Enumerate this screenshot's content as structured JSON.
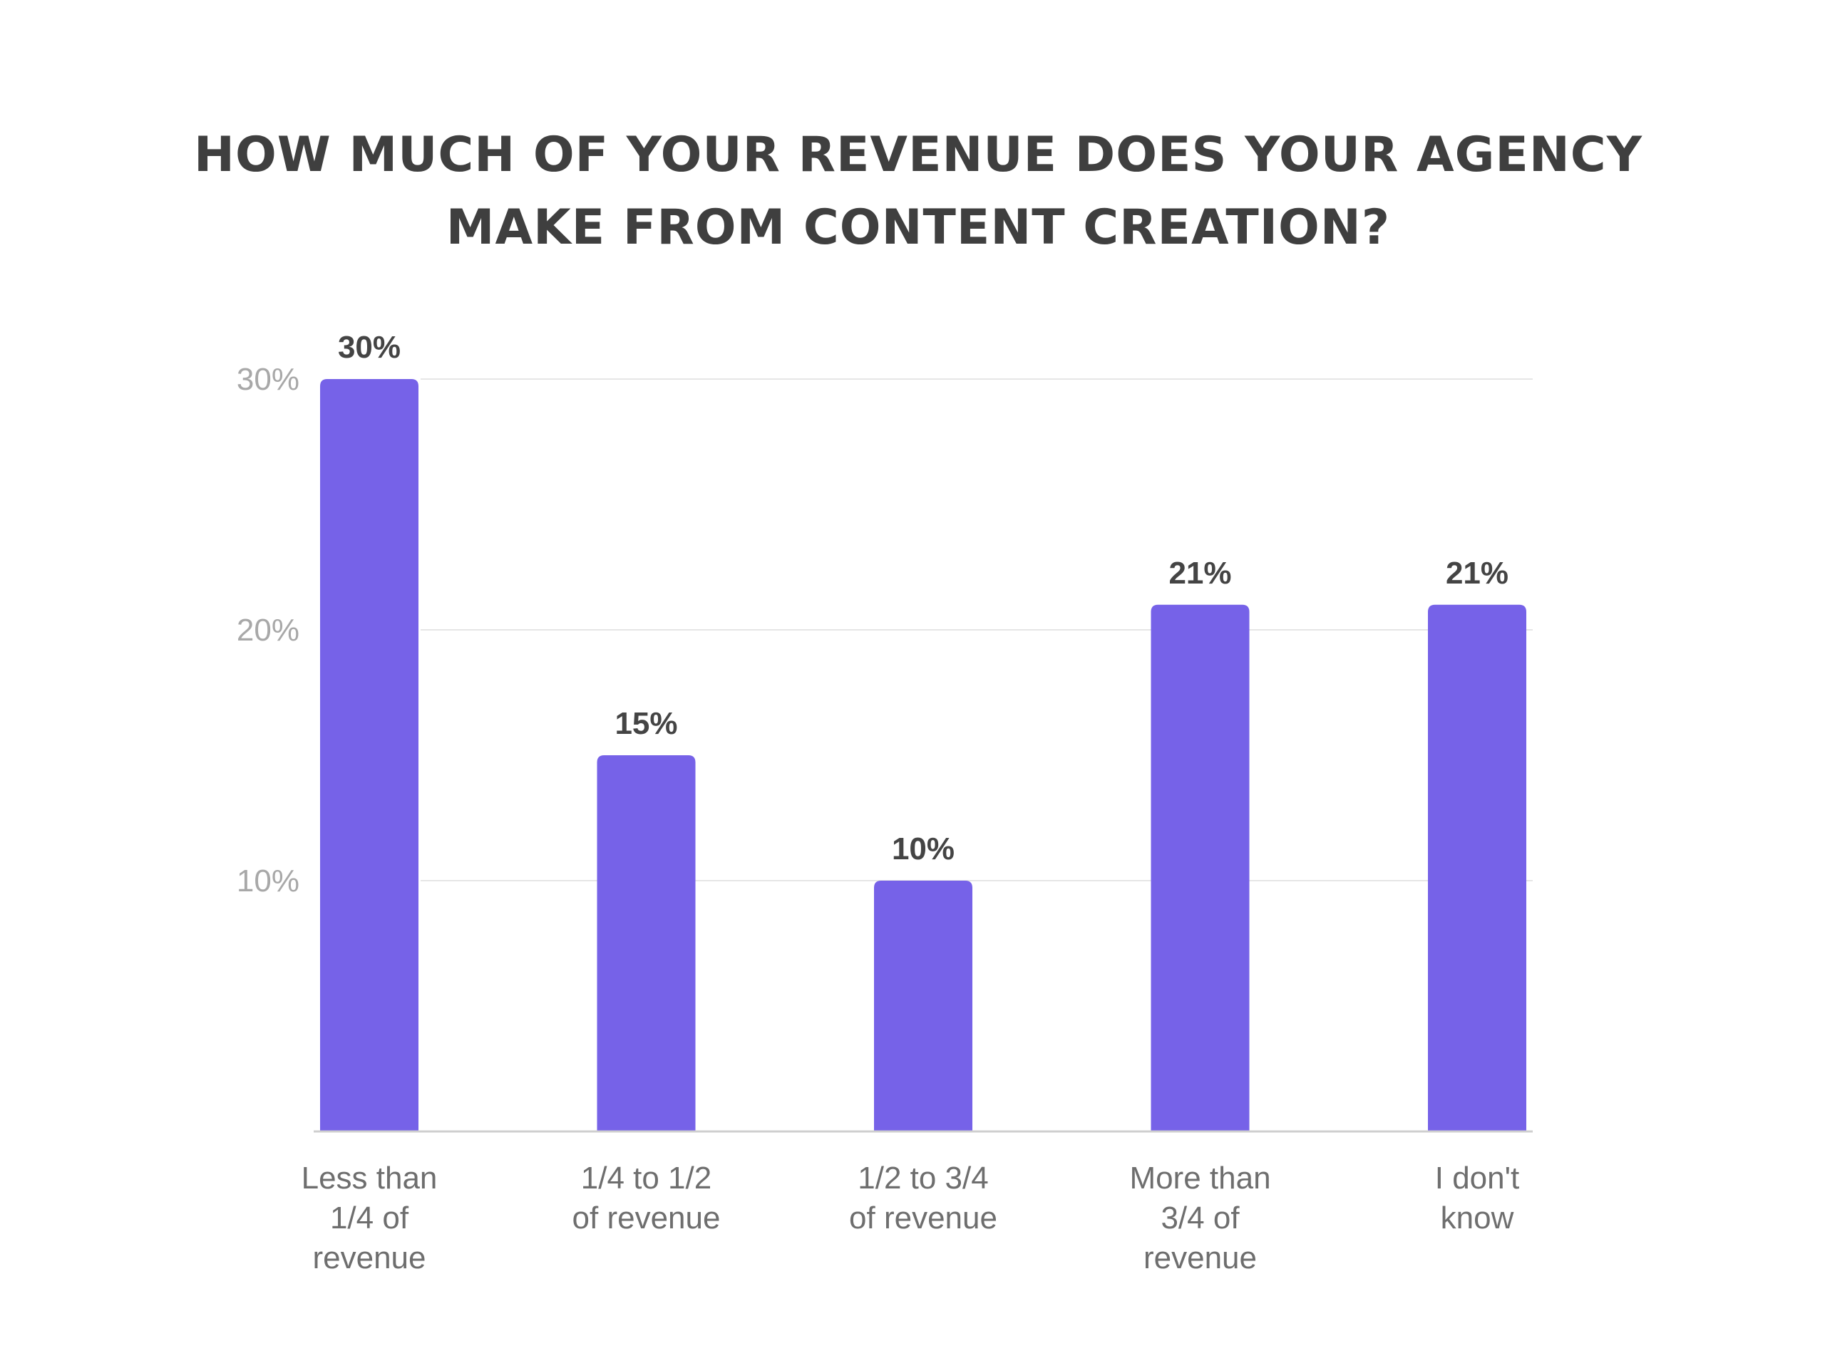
{
  "chart_data": {
    "type": "bar",
    "title_lines": [
      "HOW MUCH OF YOUR REVENUE DOES YOUR AGENCY",
      "MAKE FROM CONTENT CREATION?"
    ],
    "categories": [
      [
        "Less than",
        "1/4 of",
        "revenue"
      ],
      [
        "1/4 to 1/2",
        "of revenue"
      ],
      [
        "1/2 to 3/4",
        "of revenue"
      ],
      [
        "More than",
        "3/4 of",
        "revenue"
      ],
      [
        "I don't",
        "know"
      ]
    ],
    "values": [
      30,
      15,
      10,
      21,
      21
    ],
    "data_labels": [
      "30%",
      "15%",
      "10%",
      "21%",
      "21%"
    ],
    "y_ticks": [
      {
        "value": 10,
        "label": "10%"
      },
      {
        "value": 20,
        "label": "20%"
      },
      {
        "value": 30,
        "label": "30%"
      }
    ],
    "ylim": [
      0,
      30
    ],
    "xlabel": "",
    "ylabel": "",
    "grid": true,
    "legend": "none",
    "colors": {
      "bar": "#7662e8",
      "grid": "#e6e6e6",
      "axis": "#cfcfcf",
      "title": "#3f3f3f",
      "tick_text": "#a8a8a8",
      "label_text": "#444444",
      "category_text": "#6e6e6e"
    }
  }
}
